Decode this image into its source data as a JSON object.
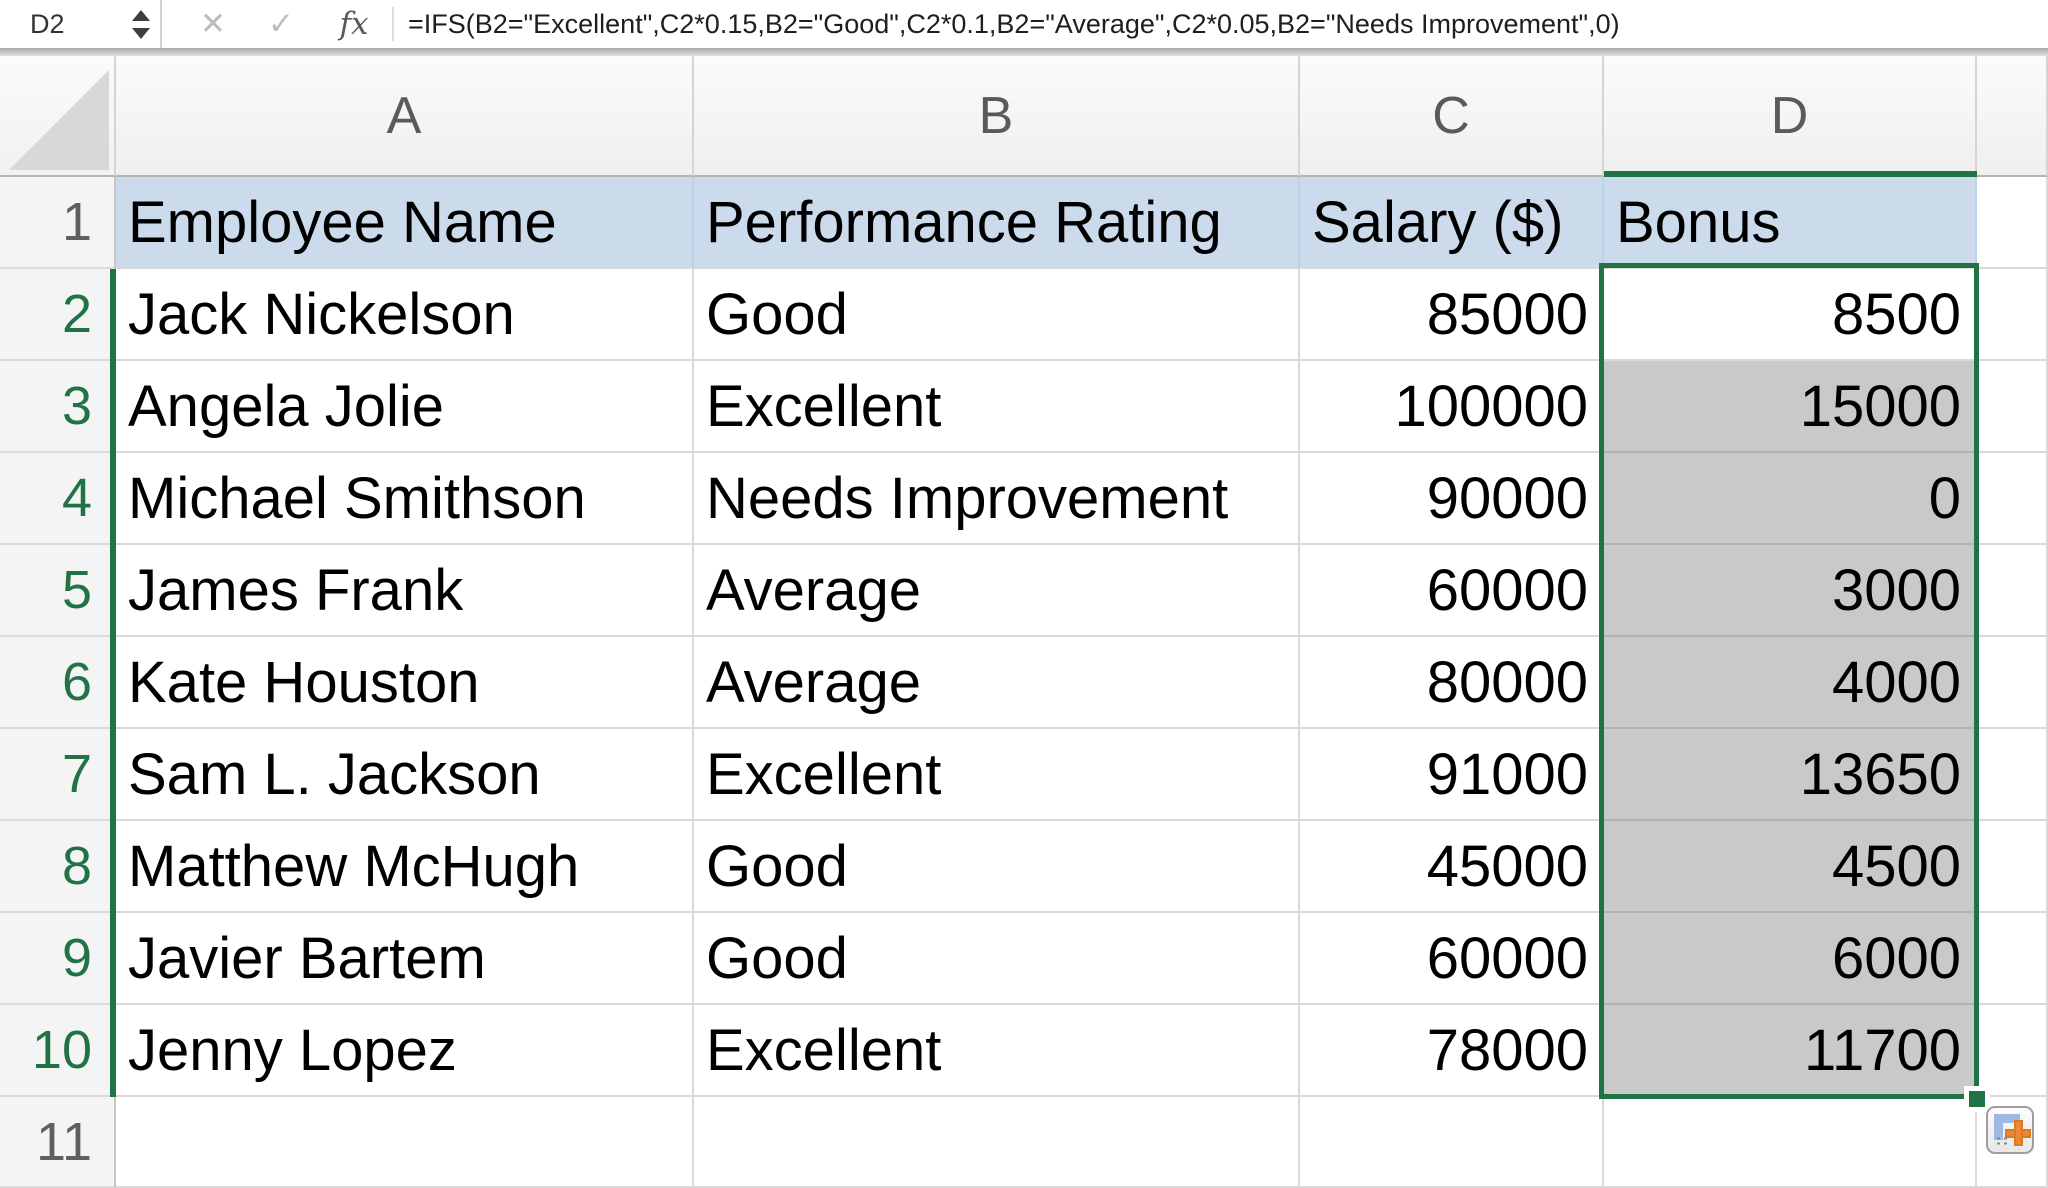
{
  "formula_bar": {
    "name_box_value": "D2",
    "cancel_label": "✕",
    "enter_label": "✓",
    "fx_label": "fx",
    "formula": "=IFS(B2=\"Excellent\",C2*0.15,B2=\"Good\",C2*0.1,B2=\"Average\",C2*0.05,B2=\"Needs Improvement\",0)"
  },
  "columns": {
    "headers": [
      "A",
      "B",
      "C",
      "D"
    ]
  },
  "header_row": {
    "number": "1",
    "employee_name": "Employee Name",
    "performance_rating": "Performance Rating",
    "salary": "Salary ($)",
    "bonus": "Bonus"
  },
  "rows": [
    {
      "number": "2",
      "employee_name": "Jack Nickelson",
      "performance_rating": "Good",
      "salary": "85000",
      "bonus": "8500"
    },
    {
      "number": "3",
      "employee_name": "Angela Jolie",
      "performance_rating": "Excellent",
      "salary": "100000",
      "bonus": "15000"
    },
    {
      "number": "4",
      "employee_name": "Michael Smithson",
      "performance_rating": "Needs Improvement",
      "salary": "90000",
      "bonus": "0"
    },
    {
      "number": "5",
      "employee_name": "James Frank",
      "performance_rating": "Average",
      "salary": "60000",
      "bonus": "3000"
    },
    {
      "number": "6",
      "employee_name": "Kate Houston",
      "performance_rating": "Average",
      "salary": "80000",
      "bonus": "4000"
    },
    {
      "number": "7",
      "employee_name": "Sam L. Jackson",
      "performance_rating": "Excellent",
      "salary": "91000",
      "bonus": "13650"
    },
    {
      "number": "8",
      "employee_name": "Matthew McHugh",
      "performance_rating": "Good",
      "salary": "45000",
      "bonus": "4500"
    },
    {
      "number": "9",
      "employee_name": "Javier Bartem",
      "performance_rating": "Good",
      "salary": "60000",
      "bonus": "6000"
    },
    {
      "number": "10",
      "employee_name": "Jenny Lopez",
      "performance_rating": "Excellent",
      "salary": "78000",
      "bonus": "11700"
    }
  ],
  "empty_row_number": "11",
  "colors": {
    "header_fill": "#cbdbec",
    "selection_fill": "#c9c9c9",
    "selection_border": "#217346",
    "row_number_selected": "#217346",
    "gridline": "#d9d9d9"
  }
}
